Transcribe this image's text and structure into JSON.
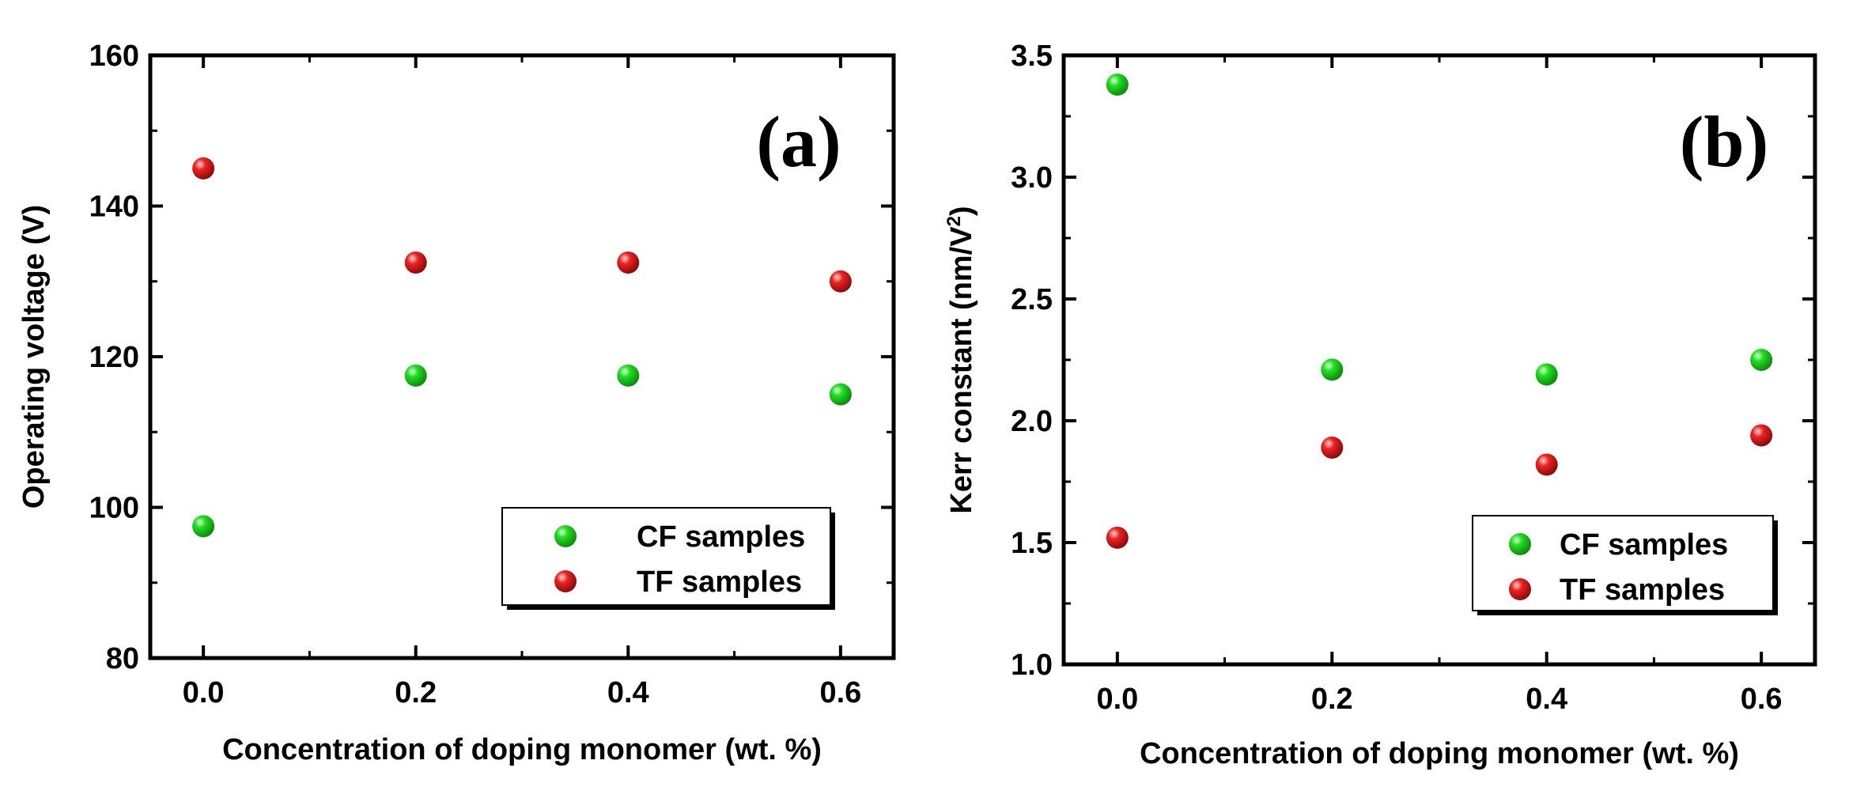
{
  "chart_data": [
    {
      "type": "scatter",
      "panel_label": "(a)",
      "xlabel": "Concentration of doping monomer (wt. %)",
      "ylabel": "Operating voltage (V)",
      "xlim": [
        -0.05,
        0.65
      ],
      "ylim": [
        80,
        160
      ],
      "xticks": [
        0.0,
        0.2,
        0.4,
        0.6
      ],
      "xtick_labels": [
        "0.0",
        "0.2",
        "0.4",
        "0.6"
      ],
      "yticks": [
        80,
        100,
        120,
        140,
        160
      ],
      "ytick_labels": [
        "80",
        "100",
        "120",
        "140",
        "160"
      ],
      "legend_position": "bottom-right",
      "series": [
        {
          "name": "CF samples",
          "color": "#22dd22",
          "x": [
            0.0,
            0.2,
            0.4,
            0.6
          ],
          "y": [
            97.5,
            117.5,
            117.5,
            115
          ]
        },
        {
          "name": "TF samples",
          "color": "#ee2222",
          "x": [
            0.0,
            0.2,
            0.4,
            0.6
          ],
          "y": [
            145,
            132.5,
            132.5,
            130
          ]
        }
      ]
    },
    {
      "type": "scatter",
      "panel_label": "(b)",
      "xlabel": "Concentration of doping monomer (wt. %)",
      "ylabel": "Kerr constant (nm/V",
      "ylabel_sup": "2",
      "ylabel_end": ")",
      "xlim": [
        -0.05,
        0.65
      ],
      "ylim": [
        1.0,
        3.5
      ],
      "xticks": [
        0.0,
        0.2,
        0.4,
        0.6
      ],
      "xtick_labels": [
        "0.0",
        "0.2",
        "0.4",
        "0.6"
      ],
      "yticks": [
        1.0,
        1.5,
        2.0,
        2.5,
        3.0,
        3.5
      ],
      "ytick_labels": [
        "1.0",
        "1.5",
        "2.0",
        "2.5",
        "3.0",
        "3.5"
      ],
      "legend_position": "bottom-right",
      "series": [
        {
          "name": "CF samples",
          "color": "#22dd22",
          "x": [
            0.0,
            0.2,
            0.4,
            0.6
          ],
          "y": [
            3.38,
            2.21,
            2.19,
            2.25
          ]
        },
        {
          "name": "TF samples",
          "color": "#ee2222",
          "x": [
            0.0,
            0.2,
            0.4,
            0.6
          ],
          "y": [
            1.52,
            1.89,
            1.82,
            1.94
          ]
        }
      ]
    }
  ]
}
